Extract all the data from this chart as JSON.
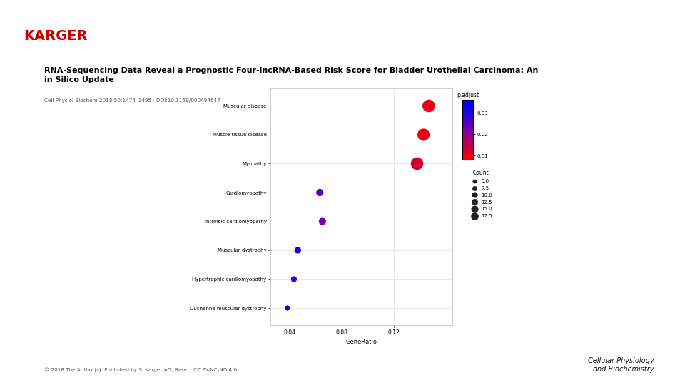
{
  "title": "RNA-Sequencing Data Reveal a Prognostic Four-lncRNA-Based Risk Score for Bladder Urothelial Carcinoma: An\nin Silico Update",
  "subtitle": "Cell Physiol Biochem 2018;50:1474–1495 · DOI:10.1159/000494647",
  "footer": "© 2018 The Author(s). Published by S. Karger AG, Basel · CC BY-NC-ND 4.0",
  "footer_right": "Cellular Physiology\nand Biochemistry",
  "categories": [
    "Muscular disease",
    "Muscle tissue disease",
    "Myopathy",
    "Cardiomyopathy",
    "Intrinsic cardiomyopathy",
    "Muscular dystrophy",
    "Hypertrophic cardiomyopathy",
    "Duchenne muscular dystrophy"
  ],
  "gene_ratio": [
    0.147,
    0.143,
    0.138,
    0.063,
    0.065,
    0.046,
    0.043,
    0.038
  ],
  "p_adjust": [
    0.01,
    0.01,
    0.012,
    0.025,
    0.022,
    0.03,
    0.028,
    0.035
  ],
  "count": [
    18,
    17,
    18,
    6,
    6,
    5,
    4,
    3
  ],
  "xlabel": "GeneRatio",
  "p_adjust_range": [
    0.008,
    0.036
  ],
  "count_legend_values": [
    5.0,
    7.5,
    10.0,
    12.5,
    15.0,
    17.5
  ],
  "background_color": "#ffffff",
  "grid_color": "#e0e0e0",
  "karger_logo_color": "#cc0000"
}
